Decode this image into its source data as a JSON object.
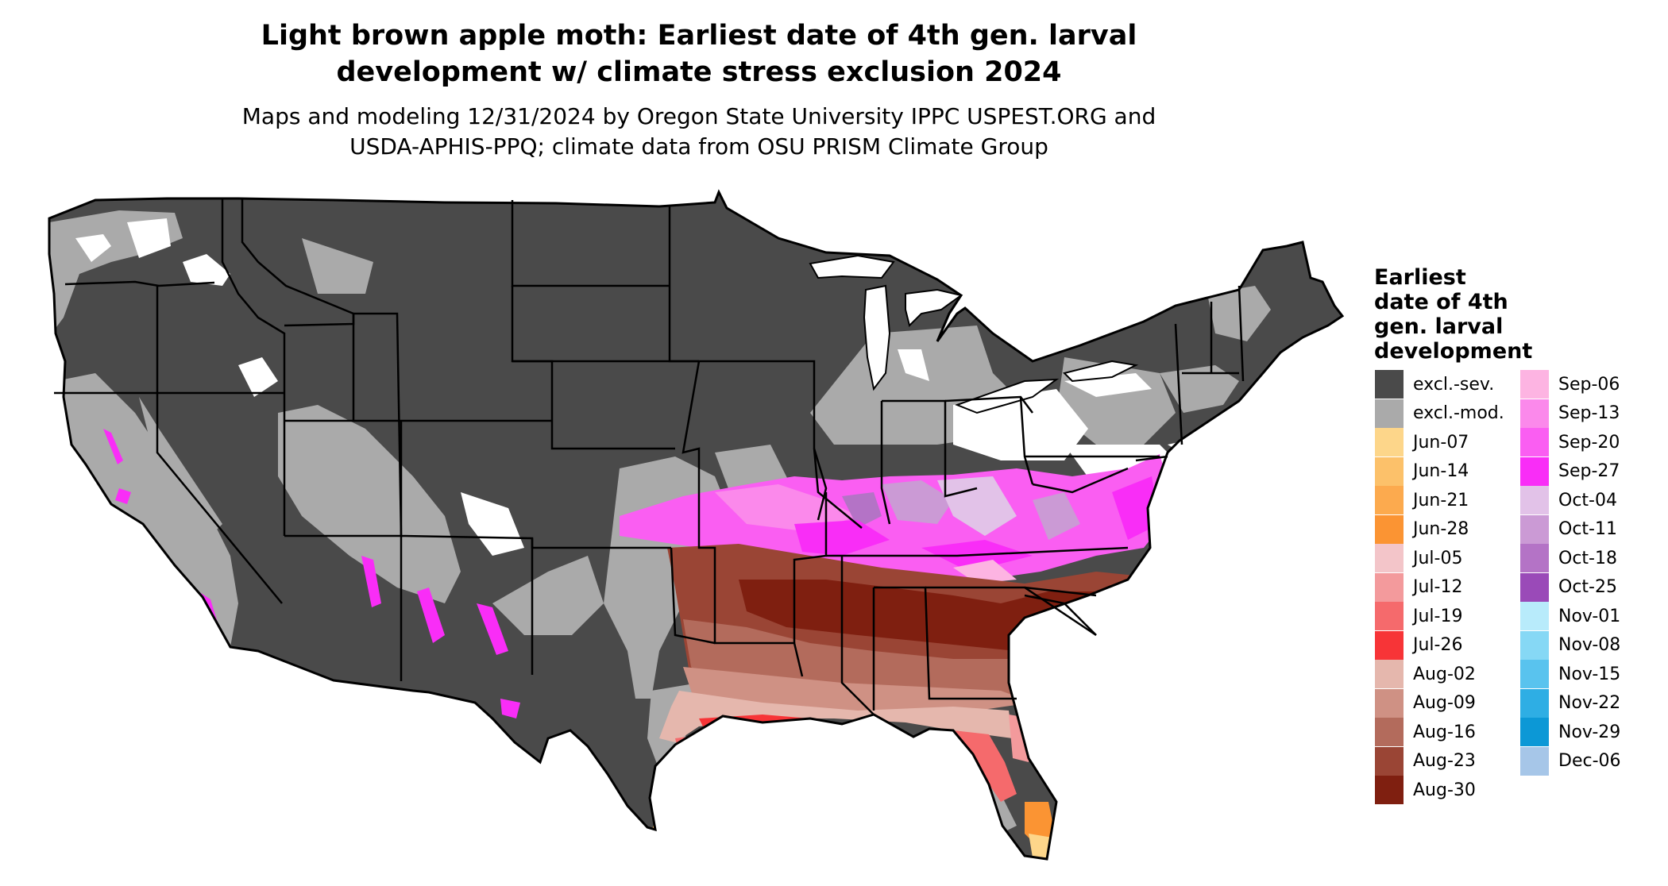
{
  "title": {
    "line1": "Light brown apple moth: Earliest date of 4th gen. larval",
    "line2": "development w/ climate stress exclusion 2024"
  },
  "subtitle": {
    "line1": "Maps and modeling 12/31/2024 by Oregon State University IPPC USPEST.ORG and",
    "line2": "USDA-APHIS-PPQ; climate data from OSU PRISM Climate Group"
  },
  "legend": {
    "title_lines": [
      "Earliest",
      "date of 4th",
      "gen. larval",
      "development"
    ],
    "column1": [
      {
        "label": "excl.-sev.",
        "color": "#4a4a4a"
      },
      {
        "label": "excl.-mod.",
        "color": "#aaaaaa"
      },
      {
        "label": "Jun-07",
        "color": "#fdd68a"
      },
      {
        "label": "Jun-14",
        "color": "#fcc16a"
      },
      {
        "label": "Jun-21",
        "color": "#fcaa4e"
      },
      {
        "label": "Jun-28",
        "color": "#fb9433"
      },
      {
        "label": "Jul-05",
        "color": "#f3c5c9"
      },
      {
        "label": "Jul-12",
        "color": "#f39a9c"
      },
      {
        "label": "Jul-19",
        "color": "#f56a6c"
      },
      {
        "label": "Jul-26",
        "color": "#f73437"
      },
      {
        "label": "Aug-02",
        "color": "#e5b7ad"
      },
      {
        "label": "Aug-09",
        "color": "#cf9184"
      },
      {
        "label": "Aug-16",
        "color": "#b36b5c"
      },
      {
        "label": "Aug-23",
        "color": "#9a4535"
      },
      {
        "label": "Aug-30",
        "color": "#7f1f10"
      }
    ],
    "column2": [
      {
        "label": "Sep-06",
        "color": "#fdb4e2"
      },
      {
        "label": "Sep-13",
        "color": "#fb89eb"
      },
      {
        "label": "Sep-20",
        "color": "#fa5ef2"
      },
      {
        "label": "Sep-27",
        "color": "#f92df7"
      },
      {
        "label": "Oct-04",
        "color": "#e2c2e8"
      },
      {
        "label": "Oct-11",
        "color": "#cb9ad5"
      },
      {
        "label": "Oct-18",
        "color": "#b473c6"
      },
      {
        "label": "Oct-25",
        "color": "#9a4ab8"
      },
      {
        "label": "Nov-01",
        "color": "#b8ebfb"
      },
      {
        "label": "Nov-08",
        "color": "#86d8f5"
      },
      {
        "label": "Nov-15",
        "color": "#59c3ee"
      },
      {
        "label": "Nov-22",
        "color": "#2eaee4"
      },
      {
        "label": "Nov-29",
        "color": "#0c98d6"
      },
      {
        "label": "Dec-06",
        "color": "#a6c6e8"
      }
    ]
  }
}
